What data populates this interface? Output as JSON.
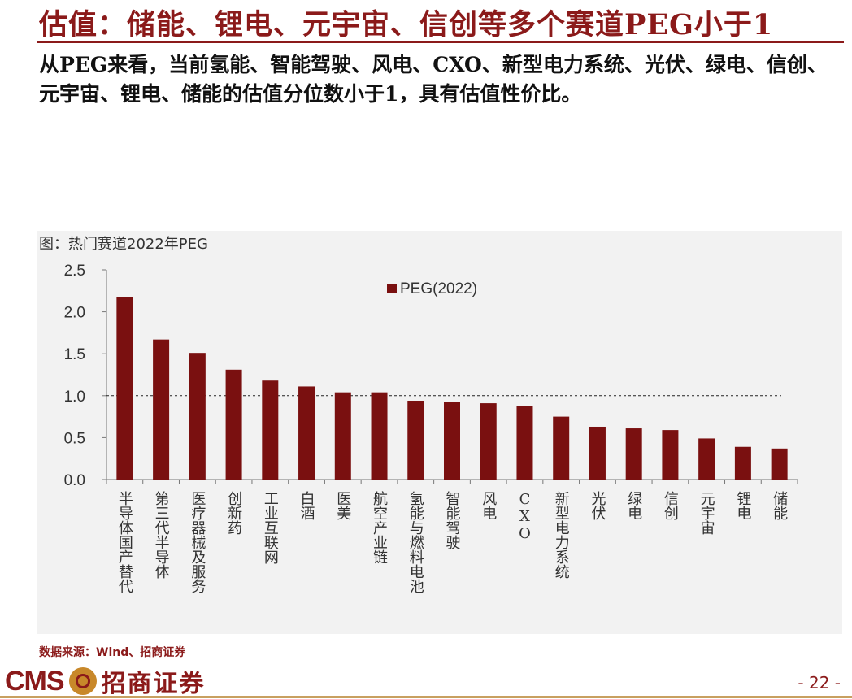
{
  "header": {
    "title": "估值：储能、锂电、元宇宙、信创等多个赛道PEG小于1",
    "subtitle": "从PEG来看，当前氢能、智能驾驶、风电、CXO、新型电力系统、光伏、绿电、信创、元宇宙、锂电、储能的估值分位数小于1，具有估值性价比。"
  },
  "chart_caption": "图：热门赛道2022年PEG",
  "chart_data": {
    "type": "bar",
    "title": "热门赛道2022年PEG",
    "legend": "PEG(2022)",
    "legend_position": "top-center",
    "categories": [
      "半导体国产替代",
      "第三代半导体",
      "医疗器械及服务",
      "创新药",
      "工业互联网",
      "白酒",
      "医美",
      "航空产业链",
      "氢能与燃料电池",
      "智能驾驶",
      "风电",
      "CXO",
      "新型电力系统",
      "光伏",
      "绿电",
      "信创",
      "元宇宙",
      "锂电",
      "储能"
    ],
    "values": [
      2.18,
      1.67,
      1.51,
      1.31,
      1.18,
      1.11,
      1.04,
      1.04,
      0.94,
      0.93,
      0.91,
      0.88,
      0.75,
      0.63,
      0.61,
      0.59,
      0.49,
      0.39,
      0.37
    ],
    "yticks": [
      "0.0",
      "0.5",
      "1.0",
      "1.5",
      "2.0",
      "2.5"
    ],
    "ylim": [
      0,
      2.5
    ],
    "reference_line": 1.0,
    "bar_color": "#7a1010",
    "xlabel": "",
    "ylabel": "",
    "grid": false
  },
  "source": "数据来源：Wind、招商证券",
  "footer": {
    "logo_cms": "CMS",
    "logo_text": "招商证券",
    "page_number": "- 22 -"
  }
}
